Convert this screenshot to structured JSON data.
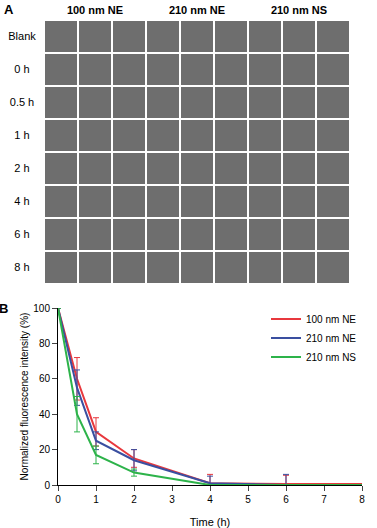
{
  "panel_a": {
    "label": "A",
    "columns": [
      "100 nm NE",
      "210 nm NE",
      "210 nm NS"
    ],
    "rows": [
      "Blank",
      "0 h",
      "0.5 h",
      "1 h",
      "2 h",
      "4 h",
      "6 h",
      "8 h"
    ]
  },
  "chart_data": {
    "type": "line",
    "label": "B",
    "x_label": "Time (h)",
    "y_label": "Normalized fluorescence intensity (%)",
    "x": [
      0,
      0.5,
      1,
      2,
      4,
      6,
      8
    ],
    "series": [
      {
        "name": "100 nm NE",
        "color": "#e8383d",
        "values": [
          100,
          60,
          30,
          15,
          1,
          0.5,
          0.5
        ],
        "error": [
          0,
          12,
          8,
          5,
          5,
          5,
          0
        ]
      },
      {
        "name": "210 nm NE",
        "color": "#3a4fa0",
        "values": [
          100,
          55,
          25,
          14,
          1,
          0,
          0
        ],
        "error": [
          0,
          10,
          5,
          6,
          4,
          6,
          0
        ]
      },
      {
        "name": "210 nm NS",
        "color": "#2db34a",
        "values": [
          100,
          40,
          17,
          7,
          0,
          0,
          0
        ],
        "error": [
          0,
          10,
          5,
          2,
          0,
          0,
          0
        ]
      }
    ],
    "xlim": [
      0,
      8
    ],
    "xticks": [
      0,
      1,
      2,
      3,
      4,
      5,
      6,
      7,
      8
    ],
    "ylim": [
      0,
      100
    ],
    "yticks": [
      0,
      20,
      40,
      60,
      80,
      100
    ],
    "grid": false,
    "legend": "top right",
    "marker": "none"
  }
}
